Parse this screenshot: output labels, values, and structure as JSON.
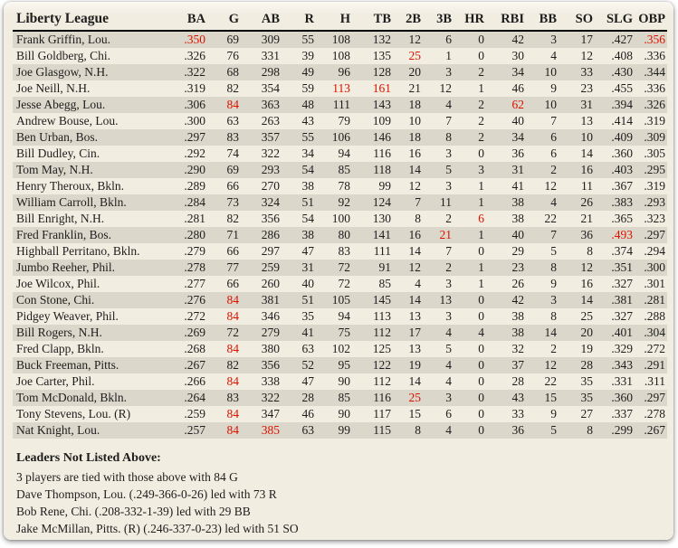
{
  "colors": {
    "card_background": "#f2ede1",
    "row_stripe": "#dbd7ca",
    "text": "#1d1d1d",
    "leader_red": "#dd1100"
  },
  "table": {
    "title": "Liberty League",
    "columns": [
      "BA",
      "G",
      "AB",
      "R",
      "H",
      "TB",
      "2B",
      "3B",
      "HR",
      "RBI",
      "BB",
      "SO",
      "SLG",
      "OBP"
    ],
    "rows": [
      {
        "name": "Frank Griffin, Lou.",
        "values": [
          ".350",
          "69",
          "309",
          "55",
          "108",
          "132",
          "12",
          "6",
          "0",
          "42",
          "3",
          "17",
          ".427",
          ".356"
        ],
        "red": [
          0,
          13
        ]
      },
      {
        "name": "Bill Goldberg, Chi.",
        "values": [
          ".326",
          "76",
          "331",
          "39",
          "108",
          "135",
          "25",
          "1",
          "0",
          "30",
          "4",
          "12",
          ".408",
          ".336"
        ],
        "red": [
          6
        ]
      },
      {
        "name": "Joe Glasgow, N.H.",
        "values": [
          ".322",
          "68",
          "298",
          "49",
          "96",
          "128",
          "20",
          "3",
          "2",
          "34",
          "10",
          "33",
          ".430",
          ".344"
        ],
        "red": []
      },
      {
        "name": "Joe Neill, N.H.",
        "values": [
          ".319",
          "82",
          "354",
          "59",
          "113",
          "161",
          "21",
          "12",
          "1",
          "46",
          "9",
          "23",
          ".455",
          ".336"
        ],
        "red": [
          4,
          5
        ]
      },
      {
        "name": "Jesse Abegg, Lou.",
        "values": [
          ".306",
          "84",
          "363",
          "48",
          "111",
          "143",
          "18",
          "4",
          "2",
          "62",
          "10",
          "31",
          ".394",
          ".326"
        ],
        "red": [
          1,
          9
        ]
      },
      {
        "name": "Andrew Bouse, Lou.",
        "values": [
          ".300",
          "63",
          "263",
          "43",
          "79",
          "109",
          "10",
          "7",
          "2",
          "40",
          "7",
          "13",
          ".414",
          ".319"
        ],
        "red": []
      },
      {
        "name": "Ben Urban, Bos.",
        "values": [
          ".297",
          "83",
          "357",
          "55",
          "106",
          "146",
          "18",
          "8",
          "2",
          "34",
          "6",
          "10",
          ".409",
          ".309"
        ],
        "red": []
      },
      {
        "name": "Bill Dudley, Cin.",
        "values": [
          ".292",
          "74",
          "322",
          "34",
          "94",
          "116",
          "16",
          "3",
          "0",
          "36",
          "6",
          "14",
          ".360",
          ".305"
        ],
        "red": []
      },
      {
        "name": "Tom May, N.H.",
        "values": [
          ".290",
          "69",
          "293",
          "54",
          "85",
          "118",
          "14",
          "5",
          "3",
          "31",
          "2",
          "16",
          ".403",
          ".295"
        ],
        "red": []
      },
      {
        "name": "Henry Theroux, Bkln.",
        "values": [
          ".289",
          "66",
          "270",
          "38",
          "78",
          "99",
          "12",
          "3",
          "1",
          "41",
          "12",
          "11",
          ".367",
          ".319"
        ],
        "red": []
      },
      {
        "name": "William Carroll, Bkln.",
        "values": [
          ".284",
          "73",
          "324",
          "51",
          "92",
          "124",
          "7",
          "11",
          "1",
          "38",
          "4",
          "26",
          ".383",
          ".293"
        ],
        "red": []
      },
      {
        "name": "Bill Enright, N.H.",
        "values": [
          ".281",
          "82",
          "356",
          "54",
          "100",
          "130",
          "8",
          "2",
          "6",
          "38",
          "22",
          "21",
          ".365",
          ".323"
        ],
        "red": [
          8
        ]
      },
      {
        "name": "Fred Franklin, Bos.",
        "values": [
          ".280",
          "71",
          "286",
          "38",
          "80",
          "141",
          "16",
          "21",
          "1",
          "40",
          "7",
          "36",
          ".493",
          ".297"
        ],
        "red": [
          7,
          12
        ]
      },
      {
        "name": "Highball Perritano, Bkln.",
        "values": [
          ".279",
          "66",
          "297",
          "47",
          "83",
          "111",
          "14",
          "7",
          "0",
          "29",
          "5",
          "8",
          ".374",
          ".294"
        ],
        "red": []
      },
      {
        "name": "Jumbo Reeher, Phil.",
        "values": [
          ".278",
          "77",
          "259",
          "31",
          "72",
          "91",
          "12",
          "2",
          "1",
          "23",
          "8",
          "12",
          ".351",
          ".300"
        ],
        "red": []
      },
      {
        "name": "Joe Wilcox, Phil.",
        "values": [
          ".277",
          "66",
          "260",
          "40",
          "72",
          "85",
          "4",
          "3",
          "1",
          "26",
          "9",
          "16",
          ".327",
          ".301"
        ],
        "red": []
      },
      {
        "name": "Con Stone, Chi.",
        "values": [
          ".276",
          "84",
          "381",
          "51",
          "105",
          "145",
          "14",
          "13",
          "0",
          "42",
          "3",
          "14",
          ".381",
          ".281"
        ],
        "red": [
          1
        ]
      },
      {
        "name": "Pidgey Weaver, Phil.",
        "values": [
          ".272",
          "84",
          "346",
          "35",
          "94",
          "113",
          "13",
          "3",
          "0",
          "38",
          "8",
          "25",
          ".327",
          ".288"
        ],
        "red": [
          1
        ]
      },
      {
        "name": "Bill Rogers, N.H.",
        "values": [
          ".269",
          "72",
          "279",
          "41",
          "75",
          "112",
          "17",
          "4",
          "4",
          "38",
          "14",
          "20",
          ".401",
          ".304"
        ],
        "red": []
      },
      {
        "name": "Fred Clapp, Bkln.",
        "values": [
          ".268",
          "84",
          "380",
          "63",
          "102",
          "125",
          "13",
          "5",
          "0",
          "32",
          "2",
          "19",
          ".329",
          ".272"
        ],
        "red": [
          1
        ]
      },
      {
        "name": "Buck Freeman, Pitts.",
        "values": [
          ".267",
          "82",
          "356",
          "52",
          "95",
          "122",
          "19",
          "4",
          "0",
          "37",
          "12",
          "28",
          ".343",
          ".291"
        ],
        "red": []
      },
      {
        "name": "Joe Carter, Phil.",
        "values": [
          ".266",
          "84",
          "338",
          "47",
          "90",
          "112",
          "14",
          "4",
          "0",
          "28",
          "22",
          "35",
          ".331",
          ".311"
        ],
        "red": [
          1
        ]
      },
      {
        "name": "Tom McDonald, Bkln.",
        "values": [
          ".264",
          "83",
          "322",
          "28",
          "85",
          "116",
          "25",
          "3",
          "0",
          "43",
          "15",
          "35",
          ".360",
          ".297"
        ],
        "red": [
          6
        ]
      },
      {
        "name": "Tony Stevens, Lou.  (R)",
        "values": [
          ".259",
          "84",
          "347",
          "46",
          "90",
          "117",
          "15",
          "6",
          "0",
          "33",
          "9",
          "27",
          ".337",
          ".278"
        ],
        "red": [
          1
        ]
      },
      {
        "name": "Nat Knight, Lou.",
        "values": [
          ".257",
          "84",
          "385",
          "63",
          "99",
          "115",
          "8",
          "4",
          "0",
          "36",
          "5",
          "8",
          ".299",
          ".267"
        ],
        "red": [
          1,
          2
        ]
      }
    ]
  },
  "leaders": {
    "heading": "Leaders Not Listed Above:",
    "lines": [
      "3 players are tied with those above with 84 G",
      "Dave Thompson, Lou. (.249-366-0-26) led with 73 R",
      "Bob Rene, Chi. (.208-332-1-39) led with 29 BB",
      "Jake McMillan, Pitts. (R) (.246-337-0-23) led with 51 SO"
    ]
  }
}
